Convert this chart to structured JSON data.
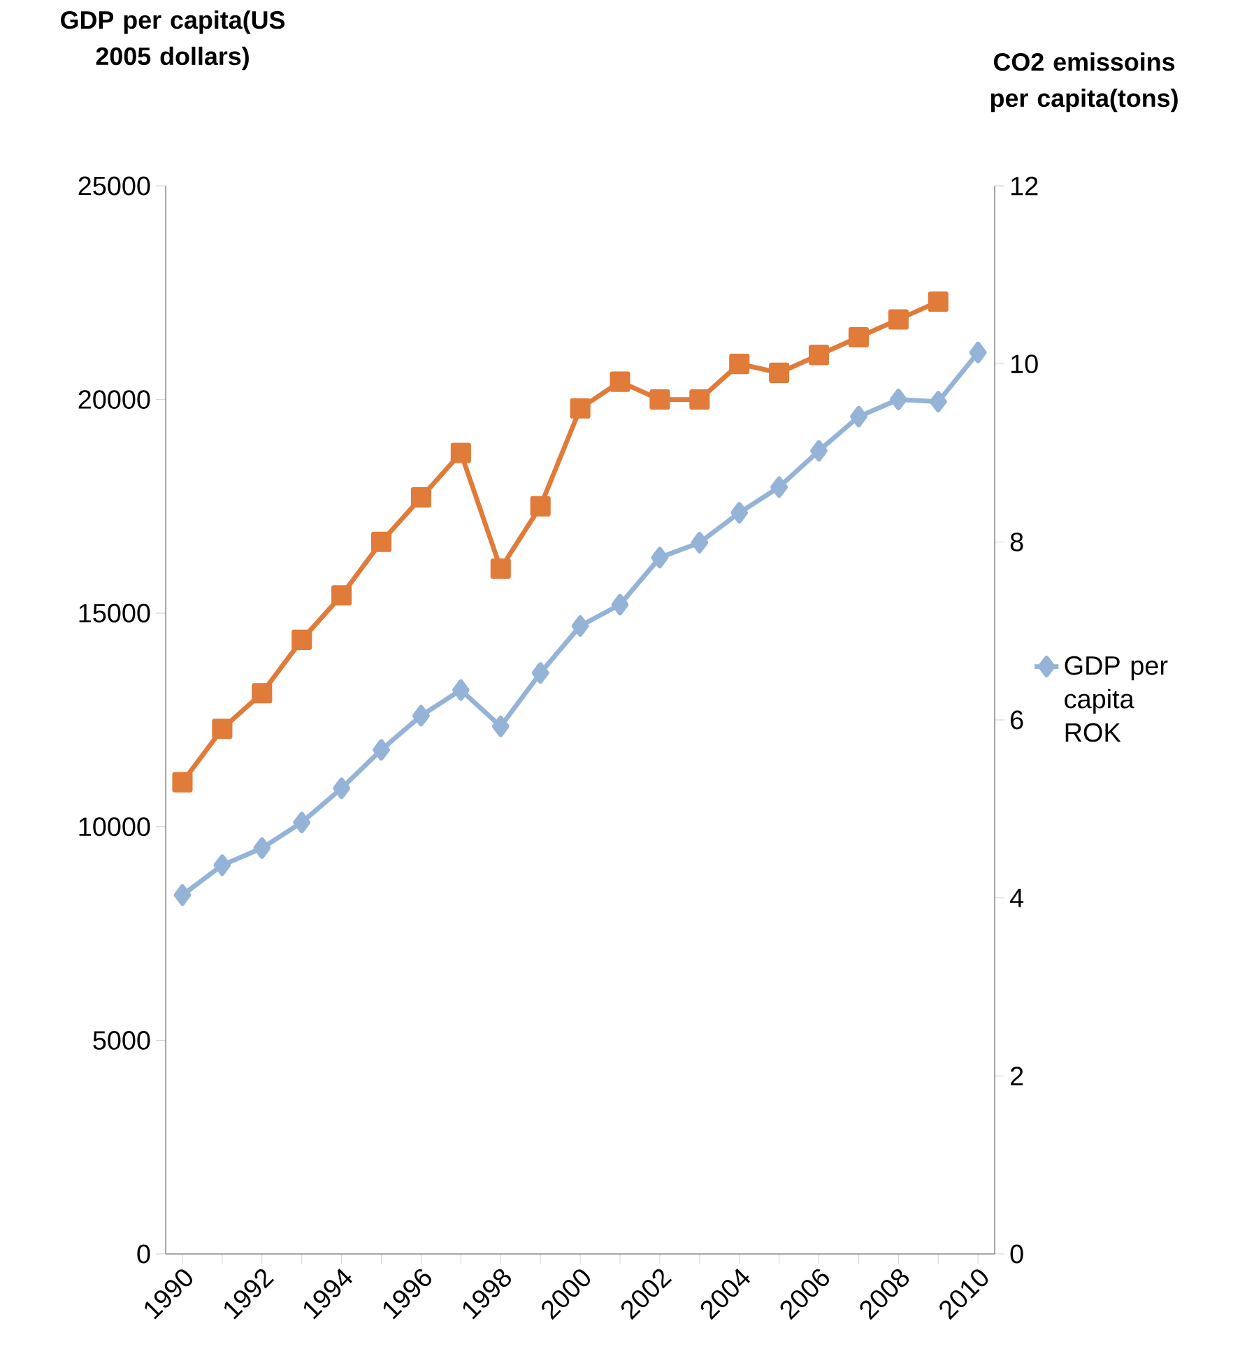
{
  "chart_data": {
    "type": "line",
    "ylabel": "GDP per capita(US 2005 dollars)",
    "y2label": "CO2 emissoins per capita(tons)",
    "categories": [
      "1990",
      null,
      "1992",
      null,
      "1994",
      null,
      "1996",
      null,
      "1998",
      null,
      "2000",
      null,
      "2002",
      null,
      "2004",
      null,
      "2006",
      null,
      "2008",
      null,
      "2010"
    ],
    "series": [
      {
        "name": "GDP per capita ROK",
        "color": "#95b3d7",
        "marker": "diamond",
        "values": [
          8400,
          9100,
          9500,
          10100,
          10900,
          11800,
          12600,
          13200,
          12350,
          13600,
          14700,
          15200,
          16300,
          16650,
          17350,
          17950,
          18800,
          19600,
          20000,
          19950,
          21100
        ]
      },
      {
        "color": "#e07b39",
        "marker": "square",
        "axis": "y2",
        "values": [
          5.3,
          5.9,
          6.3,
          6.9,
          7.4,
          8.0,
          8.5,
          9.0,
          7.7,
          8.4,
          9.5,
          9.8,
          9.6,
          9.6,
          10.0,
          9.9,
          10.1,
          10.3,
          10.5,
          10.7,
          null
        ]
      }
    ],
    "ylim": [
      0,
      25000
    ],
    "yticks": [
      0,
      5000,
      10000,
      15000,
      20000,
      25000
    ],
    "y2lim": [
      0,
      12
    ],
    "y2ticks": [
      0,
      2,
      4,
      6,
      8,
      10,
      12
    ],
    "grid": false,
    "legend": "right",
    "line_style": "solid"
  }
}
